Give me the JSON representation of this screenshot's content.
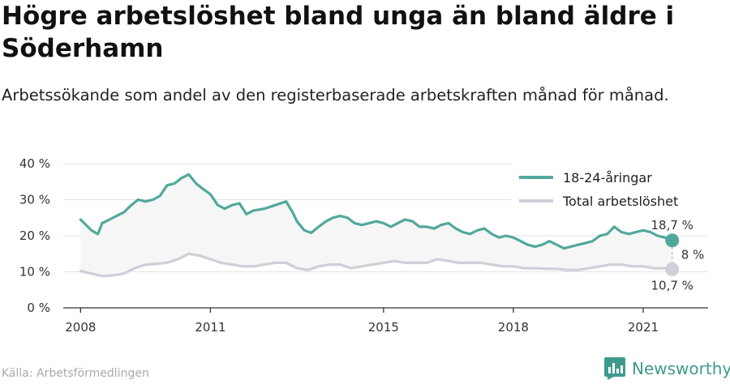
{
  "title": "Högre arbetslöshet bland unga än bland äldre i Söderhamn",
  "subtitle": "Arbetssökande som andel av den registerbaserade arbetskraften månad för månad.",
  "source": "Källa: Arbetsförmedlingen",
  "brand": {
    "name": "Newsworthy",
    "icon": "bar-chart-logo-icon"
  },
  "colors": {
    "youth": "#52a89c",
    "total": "#cfcfd8",
    "fill": "#f6f6f6",
    "grid": "#e4e4e4"
  },
  "chart_data": {
    "type": "line",
    "x_unit": "year (monthly data)",
    "xlim": [
      2007.6,
      2022.5
    ],
    "ylim": [
      0,
      40
    ],
    "y_ticks": [
      0,
      10,
      20,
      30,
      40
    ],
    "y_tick_labels": [
      "0 %",
      "10 %",
      "20 %",
      "30 %",
      "40 %"
    ],
    "x_ticks": [
      2008,
      2011,
      2015,
      2018,
      2021
    ],
    "x_tick_labels": [
      "2008",
      "2011",
      "2015",
      "2018",
      "2021"
    ],
    "grid": true,
    "legend_position": "top-right",
    "series": [
      {
        "name": "18-24-åringar",
        "color": "#52a89c",
        "points": [
          [
            2008.0,
            24.5
          ],
          [
            2008.25,
            21.5
          ],
          [
            2008.4,
            20.5
          ],
          [
            2008.5,
            23.5
          ],
          [
            2008.67,
            24.5
          ],
          [
            2008.83,
            25.5
          ],
          [
            2009.0,
            26.5
          ],
          [
            2009.17,
            28.5
          ],
          [
            2009.33,
            30.0
          ],
          [
            2009.5,
            29.5
          ],
          [
            2009.67,
            30.0
          ],
          [
            2009.83,
            31.0
          ],
          [
            2010.0,
            34.0
          ],
          [
            2010.17,
            34.5
          ],
          [
            2010.33,
            36.0
          ],
          [
            2010.5,
            37.0
          ],
          [
            2010.67,
            34.5
          ],
          [
            2010.83,
            33.0
          ],
          [
            2011.0,
            31.5
          ],
          [
            2011.17,
            28.5
          ],
          [
            2011.33,
            27.5
          ],
          [
            2011.5,
            28.5
          ],
          [
            2011.67,
            29.0
          ],
          [
            2011.83,
            26.0
          ],
          [
            2012.0,
            27.0
          ],
          [
            2012.25,
            27.5
          ],
          [
            2012.5,
            28.5
          ],
          [
            2012.75,
            29.5
          ],
          [
            2012.9,
            26.5
          ],
          [
            2013.0,
            24.0
          ],
          [
            2013.17,
            21.5
          ],
          [
            2013.33,
            20.8
          ],
          [
            2013.5,
            22.5
          ],
          [
            2013.67,
            24.0
          ],
          [
            2013.83,
            25.0
          ],
          [
            2014.0,
            25.5
          ],
          [
            2014.17,
            25.0
          ],
          [
            2014.33,
            23.5
          ],
          [
            2014.5,
            23.0
          ],
          [
            2014.67,
            23.5
          ],
          [
            2014.83,
            24.0
          ],
          [
            2015.0,
            23.5
          ],
          [
            2015.17,
            22.5
          ],
          [
            2015.33,
            23.5
          ],
          [
            2015.5,
            24.5
          ],
          [
            2015.67,
            24.0
          ],
          [
            2015.83,
            22.5
          ],
          [
            2016.0,
            22.5
          ],
          [
            2016.17,
            22.0
          ],
          [
            2016.33,
            23.0
          ],
          [
            2016.5,
            23.5
          ],
          [
            2016.67,
            22.0
          ],
          [
            2016.83,
            21.0
          ],
          [
            2017.0,
            20.5
          ],
          [
            2017.17,
            21.5
          ],
          [
            2017.33,
            22.0
          ],
          [
            2017.5,
            20.5
          ],
          [
            2017.67,
            19.5
          ],
          [
            2017.83,
            20.0
          ],
          [
            2018.0,
            19.5
          ],
          [
            2018.17,
            18.5
          ],
          [
            2018.33,
            17.5
          ],
          [
            2018.5,
            17.0
          ],
          [
            2018.67,
            17.5
          ],
          [
            2018.83,
            18.5
          ],
          [
            2019.0,
            17.5
          ],
          [
            2019.17,
            16.5
          ],
          [
            2019.33,
            17.0
          ],
          [
            2019.5,
            17.5
          ],
          [
            2019.67,
            18.0
          ],
          [
            2019.83,
            18.5
          ],
          [
            2020.0,
            20.0
          ],
          [
            2020.17,
            20.5
          ],
          [
            2020.33,
            22.5
          ],
          [
            2020.5,
            21.0
          ],
          [
            2020.67,
            20.5
          ],
          [
            2020.83,
            21.0
          ],
          [
            2021.0,
            21.5
          ],
          [
            2021.17,
            21.0
          ],
          [
            2021.33,
            20.0
          ],
          [
            2021.5,
            19.5
          ],
          [
            2021.67,
            18.7
          ]
        ],
        "end_label": "18,7 %"
      },
      {
        "name": "Total arbetslöshet",
        "color": "#cfcfd8",
        "points": [
          [
            2008.0,
            10.2
          ],
          [
            2008.25,
            9.5
          ],
          [
            2008.5,
            8.8
          ],
          [
            2008.75,
            9.0
          ],
          [
            2009.0,
            9.5
          ],
          [
            2009.25,
            11.0
          ],
          [
            2009.5,
            12.0
          ],
          [
            2009.75,
            12.2
          ],
          [
            2010.0,
            12.5
          ],
          [
            2010.25,
            13.5
          ],
          [
            2010.5,
            15.0
          ],
          [
            2010.75,
            14.5
          ],
          [
            2011.0,
            13.5
          ],
          [
            2011.25,
            12.5
          ],
          [
            2011.5,
            12.0
          ],
          [
            2011.75,
            11.5
          ],
          [
            2012.0,
            11.5
          ],
          [
            2012.25,
            12.0
          ],
          [
            2012.5,
            12.5
          ],
          [
            2012.75,
            12.5
          ],
          [
            2013.0,
            11.0
          ],
          [
            2013.25,
            10.5
          ],
          [
            2013.5,
            11.5
          ],
          [
            2013.75,
            12.0
          ],
          [
            2014.0,
            12.0
          ],
          [
            2014.25,
            11.0
          ],
          [
            2014.5,
            11.5
          ],
          [
            2014.75,
            12.0
          ],
          [
            2015.0,
            12.5
          ],
          [
            2015.25,
            13.0
          ],
          [
            2015.5,
            12.5
          ],
          [
            2015.75,
            12.5
          ],
          [
            2016.0,
            12.5
          ],
          [
            2016.25,
            13.5
          ],
          [
            2016.5,
            13.0
          ],
          [
            2016.75,
            12.5
          ],
          [
            2017.0,
            12.5
          ],
          [
            2017.25,
            12.5
          ],
          [
            2017.5,
            12.0
          ],
          [
            2017.75,
            11.5
          ],
          [
            2018.0,
            11.5
          ],
          [
            2018.25,
            11.0
          ],
          [
            2018.5,
            11.0
          ],
          [
            2018.75,
            10.8
          ],
          [
            2019.0,
            10.8
          ],
          [
            2019.25,
            10.5
          ],
          [
            2019.5,
            10.5
          ],
          [
            2019.75,
            11.0
          ],
          [
            2020.0,
            11.5
          ],
          [
            2020.25,
            12.0
          ],
          [
            2020.5,
            12.0
          ],
          [
            2020.75,
            11.5
          ],
          [
            2021.0,
            11.5
          ],
          [
            2021.25,
            11.0
          ],
          [
            2021.5,
            11.0
          ],
          [
            2021.67,
            10.7
          ]
        ],
        "end_label": "10,7 %"
      }
    ],
    "annotations": [
      {
        "text": "8 %",
        "from": "Total arbetslöshet",
        "to": "18-24-åringar"
      }
    ]
  }
}
